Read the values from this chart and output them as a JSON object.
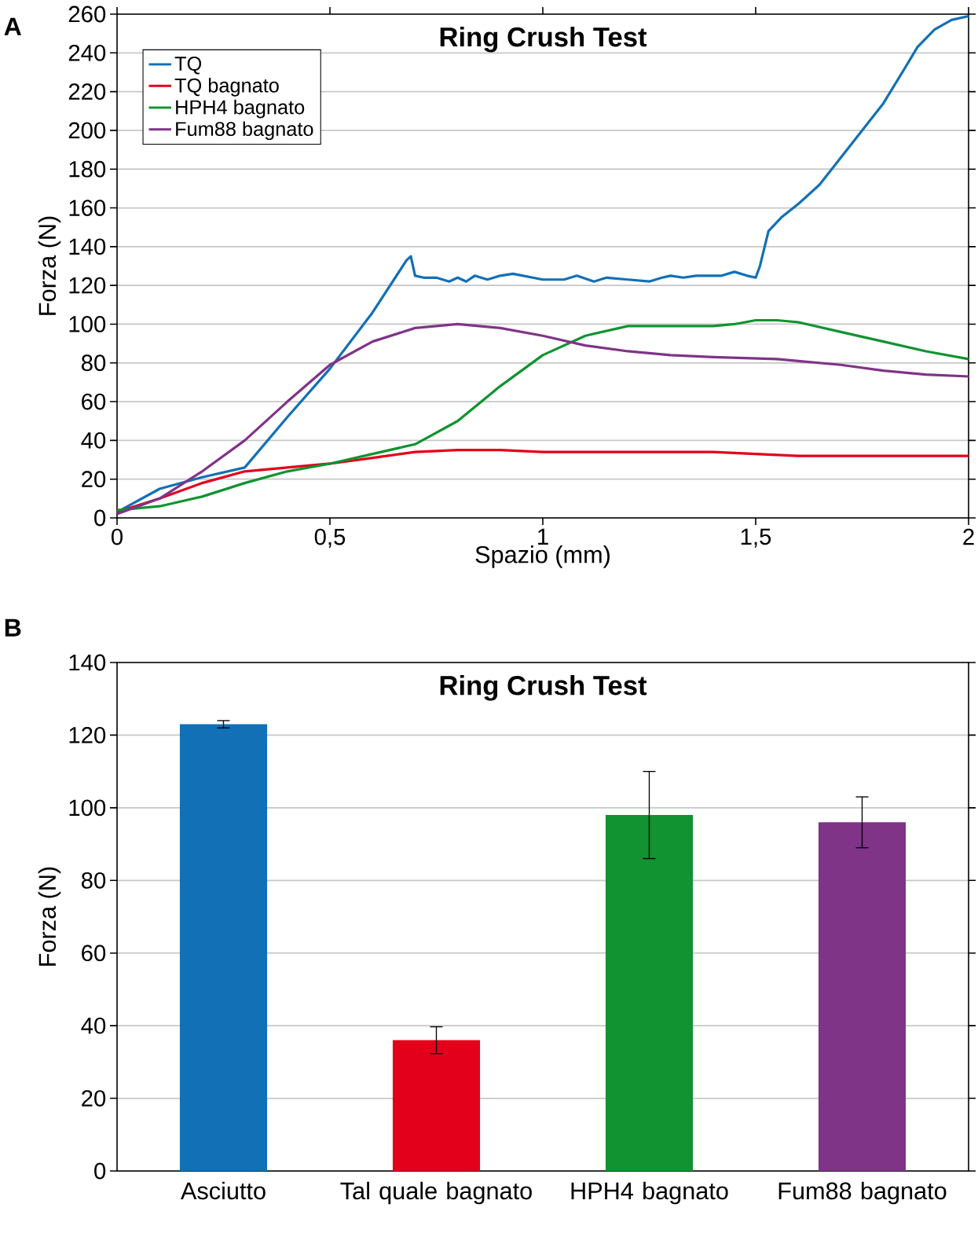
{
  "chart_data": [
    {
      "type": "line",
      "title": "Ring Crush Test",
      "xlabel": "Spazio (mm)",
      "ylabel": "Forza (N)",
      "annotations": [
        "A"
      ],
      "xlim": [
        0,
        2
      ],
      "xticks": [
        0,
        {
          "value": 0.5,
          "label": "0,5"
        },
        1,
        {
          "value": 1.5,
          "label": "1,5"
        },
        2
      ],
      "ylim": [
        0,
        260
      ],
      "yticks": [
        0,
        20,
        40,
        60,
        80,
        100,
        120,
        140,
        160,
        180,
        200,
        220,
        240,
        260
      ],
      "grid": "y",
      "legend": "top left",
      "line_style": "solid",
      "marker": "none",
      "series": [
        {
          "name": "TQ",
          "color": "#1170b6",
          "x": [
            0,
            0.1,
            0.2,
            0.3,
            0.4,
            0.5,
            0.6,
            0.68,
            0.69,
            0.7,
            0.72,
            0.75,
            0.78,
            0.8,
            0.82,
            0.84,
            0.87,
            0.9,
            0.93,
            1.0,
            1.05,
            1.08,
            1.12,
            1.15,
            1.2,
            1.25,
            1.28,
            1.3,
            1.33,
            1.36,
            1.42,
            1.45,
            1.48,
            1.5,
            1.51,
            1.53,
            1.56,
            1.6,
            1.65,
            1.7,
            1.75,
            1.8,
            1.85,
            1.88,
            1.92,
            1.96,
            2.0
          ],
          "values": [
            3,
            15,
            21,
            26,
            52,
            77,
            106,
            133,
            135,
            125,
            124,
            124,
            122,
            124,
            122,
            125,
            123,
            125,
            126,
            123,
            123,
            125,
            122,
            124,
            123,
            122,
            124,
            125,
            124,
            125,
            125,
            127,
            125,
            124,
            130,
            148,
            155,
            162,
            172,
            186,
            200,
            214,
            232,
            243,
            252,
            257,
            259
          ]
        },
        {
          "name": "TQ bagnato",
          "color": "#e2001a",
          "x": [
            0,
            0.1,
            0.2,
            0.3,
            0.4,
            0.5,
            0.6,
            0.7,
            0.8,
            0.9,
            1.0,
            1.2,
            1.4,
            1.5,
            1.6,
            1.8,
            2.0
          ],
          "values": [
            3,
            10,
            18,
            24,
            26,
            28,
            31,
            34,
            35,
            35,
            34,
            34,
            34,
            33,
            32,
            32,
            32
          ]
        },
        {
          "name": "HPH4 bagnato",
          "color": "#109330",
          "x": [
            0,
            0.1,
            0.2,
            0.3,
            0.4,
            0.5,
            0.6,
            0.7,
            0.8,
            0.9,
            1.0,
            1.1,
            1.2,
            1.3,
            1.4,
            1.45,
            1.5,
            1.55,
            1.6,
            1.7,
            1.8,
            1.9,
            2.0
          ],
          "values": [
            4,
            6,
            11,
            18,
            24,
            28,
            33,
            38,
            50,
            68,
            84,
            94,
            99,
            99,
            99,
            100,
            102,
            102,
            101,
            96,
            91,
            86,
            82
          ]
        },
        {
          "name": "Fum88 bagnato",
          "color": "#7f3488",
          "x": [
            0,
            0.1,
            0.2,
            0.3,
            0.4,
            0.5,
            0.6,
            0.7,
            0.8,
            0.9,
            1.0,
            1.1,
            1.2,
            1.3,
            1.4,
            1.55,
            1.6,
            1.7,
            1.8,
            1.9,
            2.0
          ],
          "values": [
            2,
            10,
            24,
            40,
            60,
            79,
            91,
            98,
            100,
            98,
            94,
            89,
            86,
            84,
            83,
            82,
            81,
            79,
            76,
            74,
            73
          ]
        }
      ]
    },
    {
      "type": "bar",
      "title": "Ring Crush Test",
      "ylabel": "Forza (N)",
      "annotations": [
        "B"
      ],
      "categories": [
        "Asciutto",
        "Tal quale bagnato",
        "HPH4 bagnato",
        "Fum88 bagnato"
      ],
      "values": [
        123,
        36,
        98,
        96
      ],
      "errors": [
        1,
        3.7,
        12,
        7
      ],
      "colors": [
        "#1170b6",
        "#e2001a",
        "#109330",
        "#7f3488"
      ],
      "ylim": [
        0,
        140
      ],
      "yticks": [
        0,
        20,
        40,
        60,
        80,
        100,
        120,
        140
      ],
      "grid": "y"
    }
  ]
}
